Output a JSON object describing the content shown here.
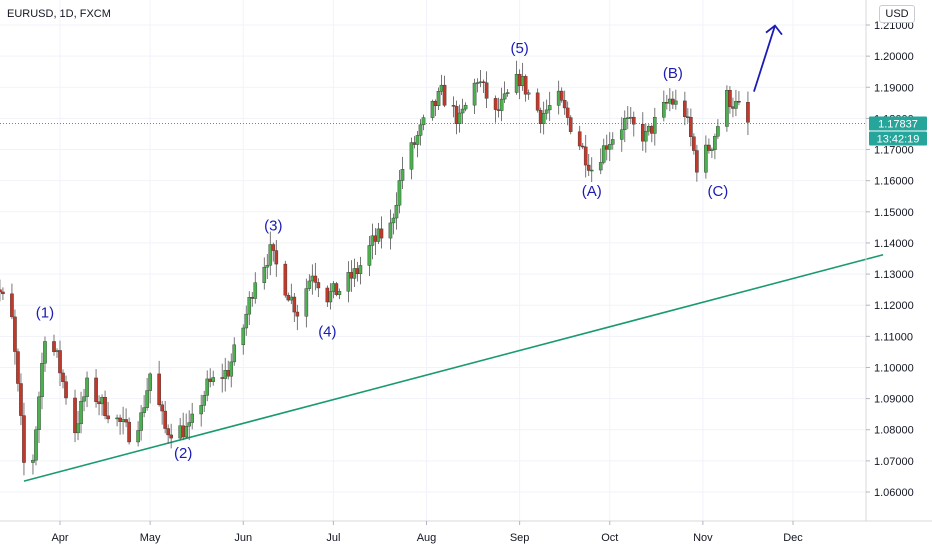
{
  "header": {
    "symbol": "EURUSD, 1D, FXCM",
    "currency": "USD"
  },
  "price_box": {
    "last_price": "1.17837",
    "countdown": "13:42:19"
  },
  "colors": {
    "up": "#26a69a",
    "down": "#ef5350",
    "trendline": "#1a9a70",
    "annotation": "#1b1bb5",
    "last_price_line": "#26a69a",
    "up_body": "#4caf50",
    "down_body": "#c0392b"
  },
  "chart_data": {
    "type": "candlestick",
    "title": "EURUSD, 1D, FXCM",
    "ylim": [
      1.05,
      1.2157
    ],
    "y_ticks": [
      "1.06000",
      "1.07000",
      "1.08000",
      "1.09000",
      "1.10000",
      "1.11000",
      "1.12000",
      "1.13000",
      "1.14000",
      "1.15000",
      "1.16000",
      "1.17000",
      "1.18000",
      "1.19000",
      "1.20000",
      "1.21000"
    ],
    "x_ticks": [
      "Apr",
      "May",
      "Jun",
      "Jul",
      "Aug",
      "Sep",
      "Oct",
      "Nov",
      "Dec"
    ],
    "last_price": 1.17837,
    "waypoints": [
      [
        "2020-03-09",
        1.13
      ],
      [
        "2020-03-12",
        1.124
      ],
      [
        "2020-03-16",
        1.115
      ],
      [
        "2020-03-19",
        1.082
      ],
      [
        "2020-03-20",
        1.069
      ],
      [
        "2020-03-23",
        1.071
      ],
      [
        "2020-03-27",
        1.111
      ],
      [
        "2020-03-31",
        1.103
      ],
      [
        "2020-04-06",
        1.08
      ],
      [
        "2020-04-10",
        1.094
      ],
      [
        "2020-04-16",
        1.087
      ],
      [
        "2020-04-24",
        1.079
      ],
      [
        "2020-04-28",
        1.084
      ],
      [
        "2020-05-01",
        1.098
      ],
      [
        "2020-05-06",
        1.08
      ],
      [
        "2020-05-14",
        1.08
      ],
      [
        "2020-05-20",
        1.094
      ],
      [
        "2020-05-27",
        1.099
      ],
      [
        "2020-06-01",
        1.113
      ],
      [
        "2020-06-05",
        1.129
      ],
      [
        "2020-06-10",
        1.137
      ],
      [
        "2020-06-15",
        1.126
      ],
      [
        "2020-06-19",
        1.118
      ],
      [
        "2020-06-24",
        1.131
      ],
      [
        "2020-06-29",
        1.123
      ],
      [
        "2020-07-03",
        1.125
      ],
      [
        "2020-07-09",
        1.131
      ],
      [
        "2020-07-14",
        1.14
      ],
      [
        "2020-07-20",
        1.145
      ],
      [
        "2020-07-24",
        1.164
      ],
      [
        "2020-07-31",
        1.178
      ],
      [
        "2020-08-06",
        1.188
      ],
      [
        "2020-08-12",
        1.179
      ],
      [
        "2020-08-18",
        1.193
      ],
      [
        "2020-08-24",
        1.181
      ],
      [
        "2020-09-01",
        1.193
      ],
      [
        "2020-09-08",
        1.181
      ],
      [
        "2020-09-14",
        1.186
      ],
      [
        "2020-09-21",
        1.172
      ],
      [
        "2020-09-25",
        1.164
      ],
      [
        "2020-09-30",
        1.172
      ],
      [
        "2020-10-06",
        1.179
      ],
      [
        "2020-10-13",
        1.174
      ],
      [
        "2020-10-21",
        1.186
      ],
      [
        "2020-10-26",
        1.182
      ],
      [
        "2020-10-30",
        1.165
      ],
      [
        "2020-11-04",
        1.172
      ],
      [
        "2020-11-09",
        1.187
      ],
      [
        "2020-11-13",
        1.183
      ],
      [
        "2020-11-16",
        1.178
      ]
    ],
    "annotations": [
      {
        "label": "(1)",
        "date": "2020-03-27",
        "price": 1.116
      },
      {
        "label": "(2)",
        "date": "2020-05-12",
        "price": 1.071
      },
      {
        "label": "(3)",
        "date": "2020-06-11",
        "price": 1.144
      },
      {
        "label": "(4)",
        "date": "2020-06-29",
        "price": 1.11
      },
      {
        "label": "(5)",
        "date": "2020-09-01",
        "price": 1.201
      },
      {
        "label": "(A)",
        "date": "2020-09-25",
        "price": 1.155
      },
      {
        "label": "(B)",
        "date": "2020-10-22",
        "price": 1.193
      },
      {
        "label": "(C)",
        "date": "2020-11-06",
        "price": 1.155
      }
    ],
    "trendline": [
      [
        "2020-03-20",
        1.0635
      ],
      [
        "2020-12-31",
        1.1362
      ]
    ],
    "arrow": [
      [
        "2020-11-18",
        1.1886
      ],
      [
        "2020-11-25",
        1.2098
      ]
    ]
  }
}
